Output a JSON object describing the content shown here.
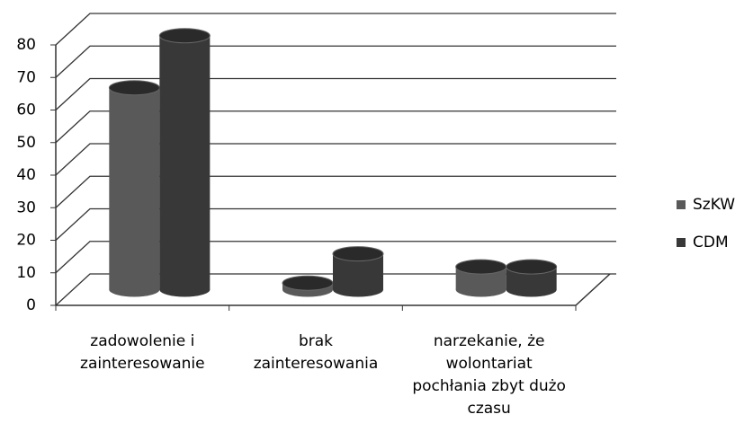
{
  "chart_data": {
    "type": "bar3d",
    "categories": [
      "zadowolenie i zainteresowanie",
      "brak zainteresowania",
      "narzekanie, że wolontariat pochłania zbyt dużo czasu"
    ],
    "series": [
      {
        "name": "SzKW",
        "color": "#595959",
        "values": [
          62,
          2,
          7
        ]
      },
      {
        "name": "CDM",
        "color": "#383838",
        "values": [
          78,
          11,
          7
        ]
      }
    ],
    "ylim": [
      0,
      80
    ],
    "yticks": [
      0,
      10,
      20,
      30,
      40,
      50,
      60,
      70,
      80
    ],
    "grid": true,
    "legend": "right"
  }
}
